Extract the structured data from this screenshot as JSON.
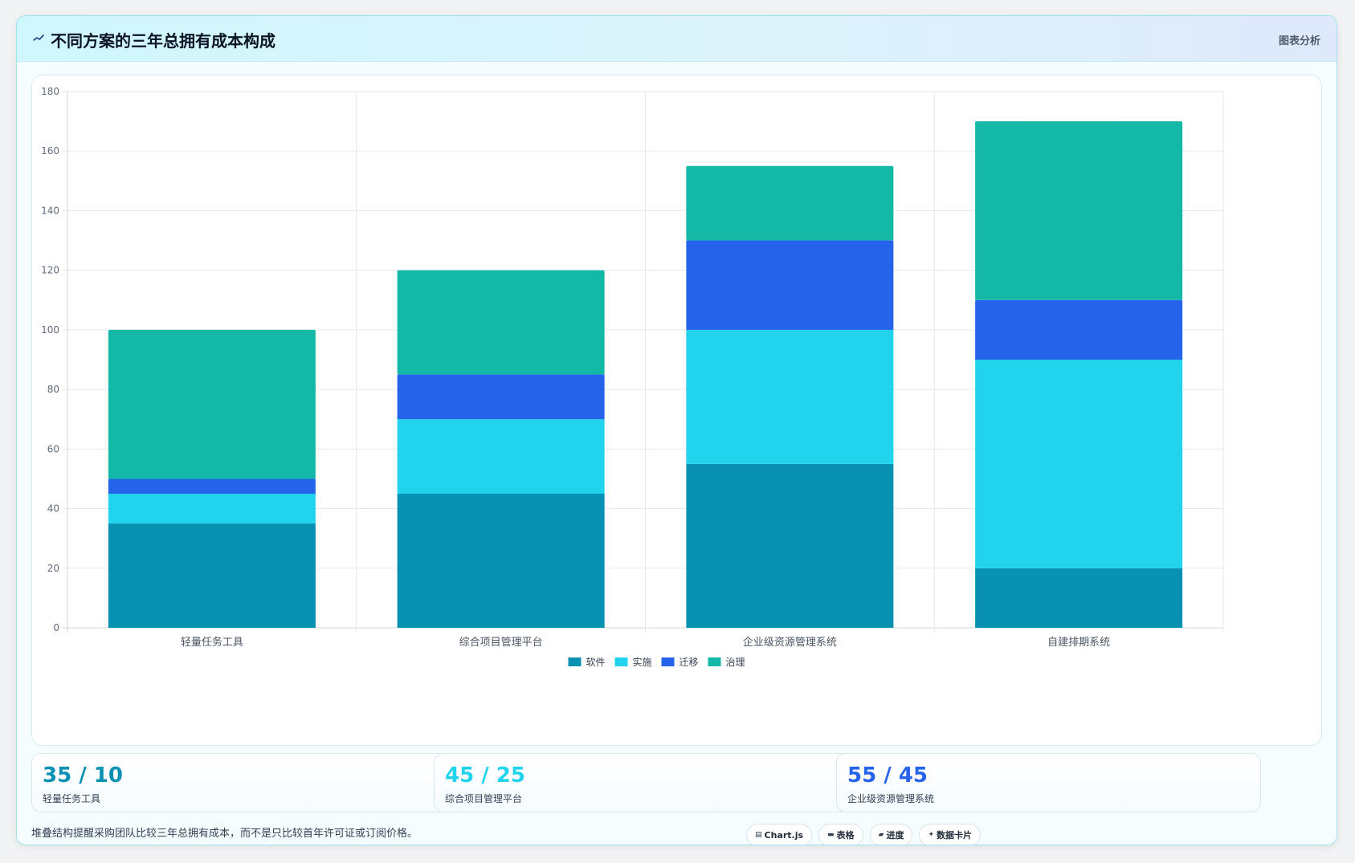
{
  "header": {
    "title": "不同方案的三年总拥有成本构成",
    "tag": "图表分析",
    "icon": "sparkline-icon"
  },
  "colors": {
    "software": "#0891b2",
    "implementation": "#22d3ee",
    "migration": "#2563eb",
    "governance": "#14b8a6",
    "grid": "#e5e9ef",
    "tick_text": "#5f6b7a"
  },
  "chart_data": {
    "type": "bar",
    "stacked": true,
    "title": "",
    "xlabel": "",
    "ylabel": "",
    "categories": [
      "轻量任务工具",
      "综合项目管理平台",
      "企业级资源管理系统",
      "自建排期系统"
    ],
    "series": [
      {
        "name": "软件",
        "values": [
          35,
          45,
          55,
          20
        ],
        "color": "#0891b2"
      },
      {
        "name": "实施",
        "values": [
          10,
          25,
          45,
          70
        ],
        "color": "#22d3ee"
      },
      {
        "name": "迁移",
        "values": [
          5,
          15,
          30,
          20
        ],
        "color": "#2563eb"
      },
      {
        "name": "治理",
        "values": [
          50,
          35,
          25,
          60
        ],
        "color": "#14b8a6"
      }
    ],
    "ylim": [
      0,
      180
    ],
    "yticks": [
      0,
      20,
      40,
      60,
      80,
      100,
      120,
      140,
      160,
      180
    ],
    "grid": true,
    "legend_position": "bottom"
  },
  "stats": [
    {
      "value": "35 / 10",
      "label": "轻量任务工具",
      "color": "#0891b2"
    },
    {
      "value": "45 / 25",
      "label": "综合项目管理平台",
      "color": "#22d3ee"
    },
    {
      "value": "55 / 45",
      "label": "企业级资源管理系统",
      "color": "#2563eb"
    }
  ],
  "footnote": "堆叠结构提醒采购团队比较三年总拥有成本，而不是只比较首年许可证或订阅价格。",
  "chips": [
    {
      "icon": "▤",
      "icon_name": "chart-icon",
      "label": "Chart.js"
    },
    {
      "icon": "▬",
      "icon_name": "table-icon",
      "label": "表格"
    },
    {
      "icon": "▰",
      "icon_name": "progress-icon",
      "label": "进度"
    },
    {
      "icon": "✦",
      "icon_name": "sparkle-icon",
      "label": "数据卡片"
    }
  ]
}
